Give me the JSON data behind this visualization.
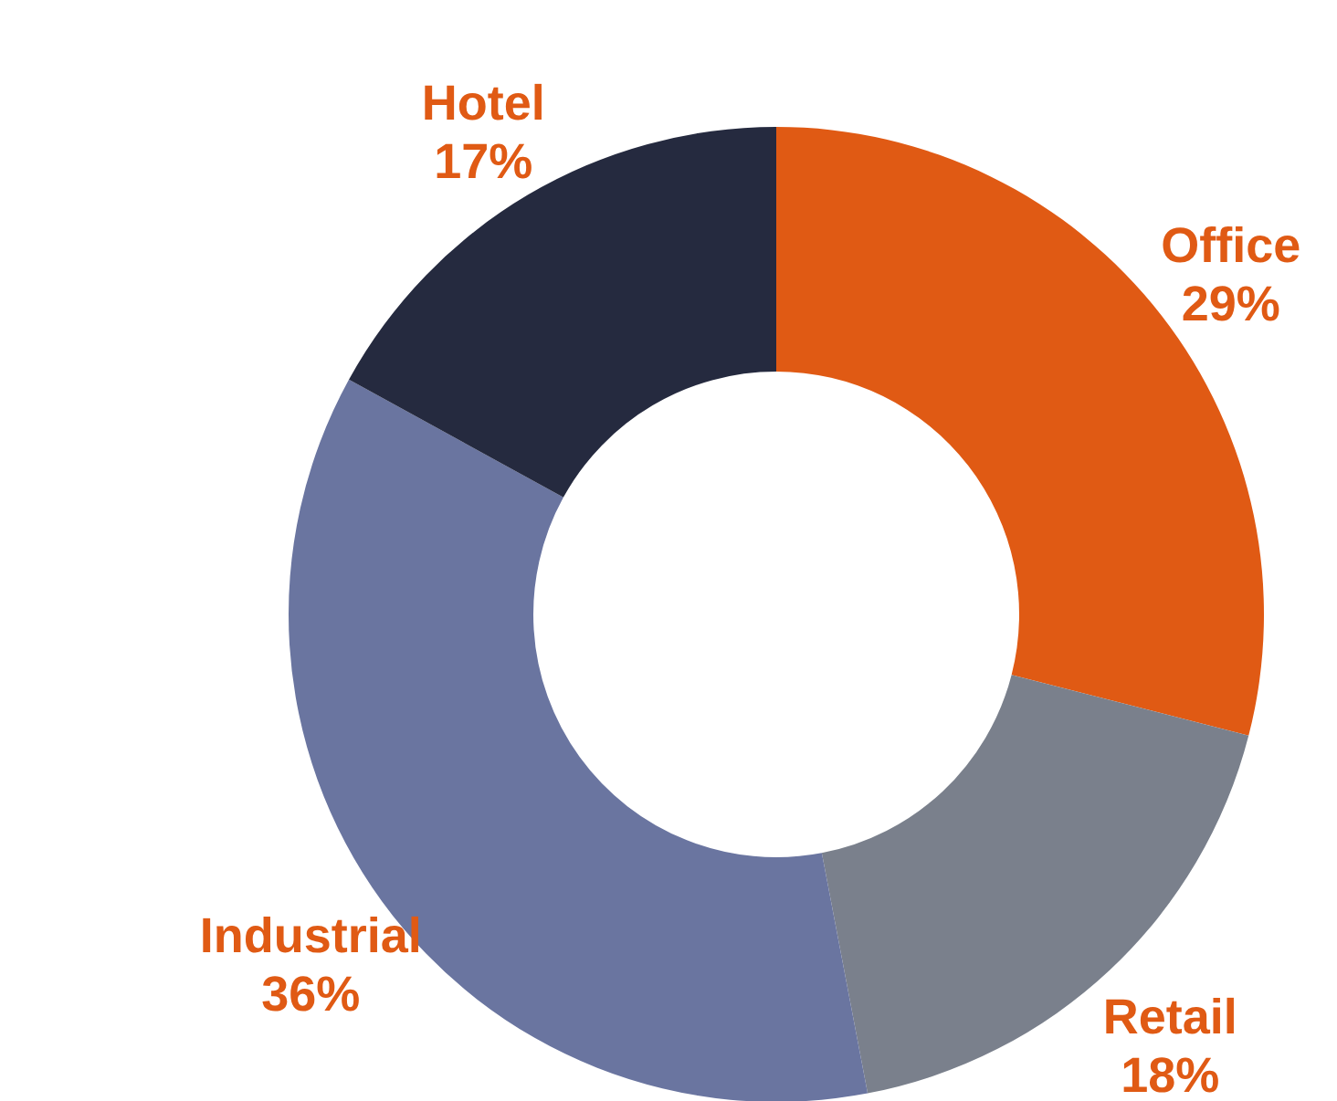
{
  "chart_data": {
    "type": "donut",
    "categories": [
      "Office",
      "Retail",
      "Industrial",
      "Hotel"
    ],
    "values": [
      29,
      18,
      36,
      17
    ],
    "colors": [
      "#e05a14",
      "#7a808c",
      "#6a75a0",
      "#252a3f"
    ],
    "value_labels": [
      "29%",
      "18%",
      "36%",
      "17%"
    ],
    "legend": false
  }
}
